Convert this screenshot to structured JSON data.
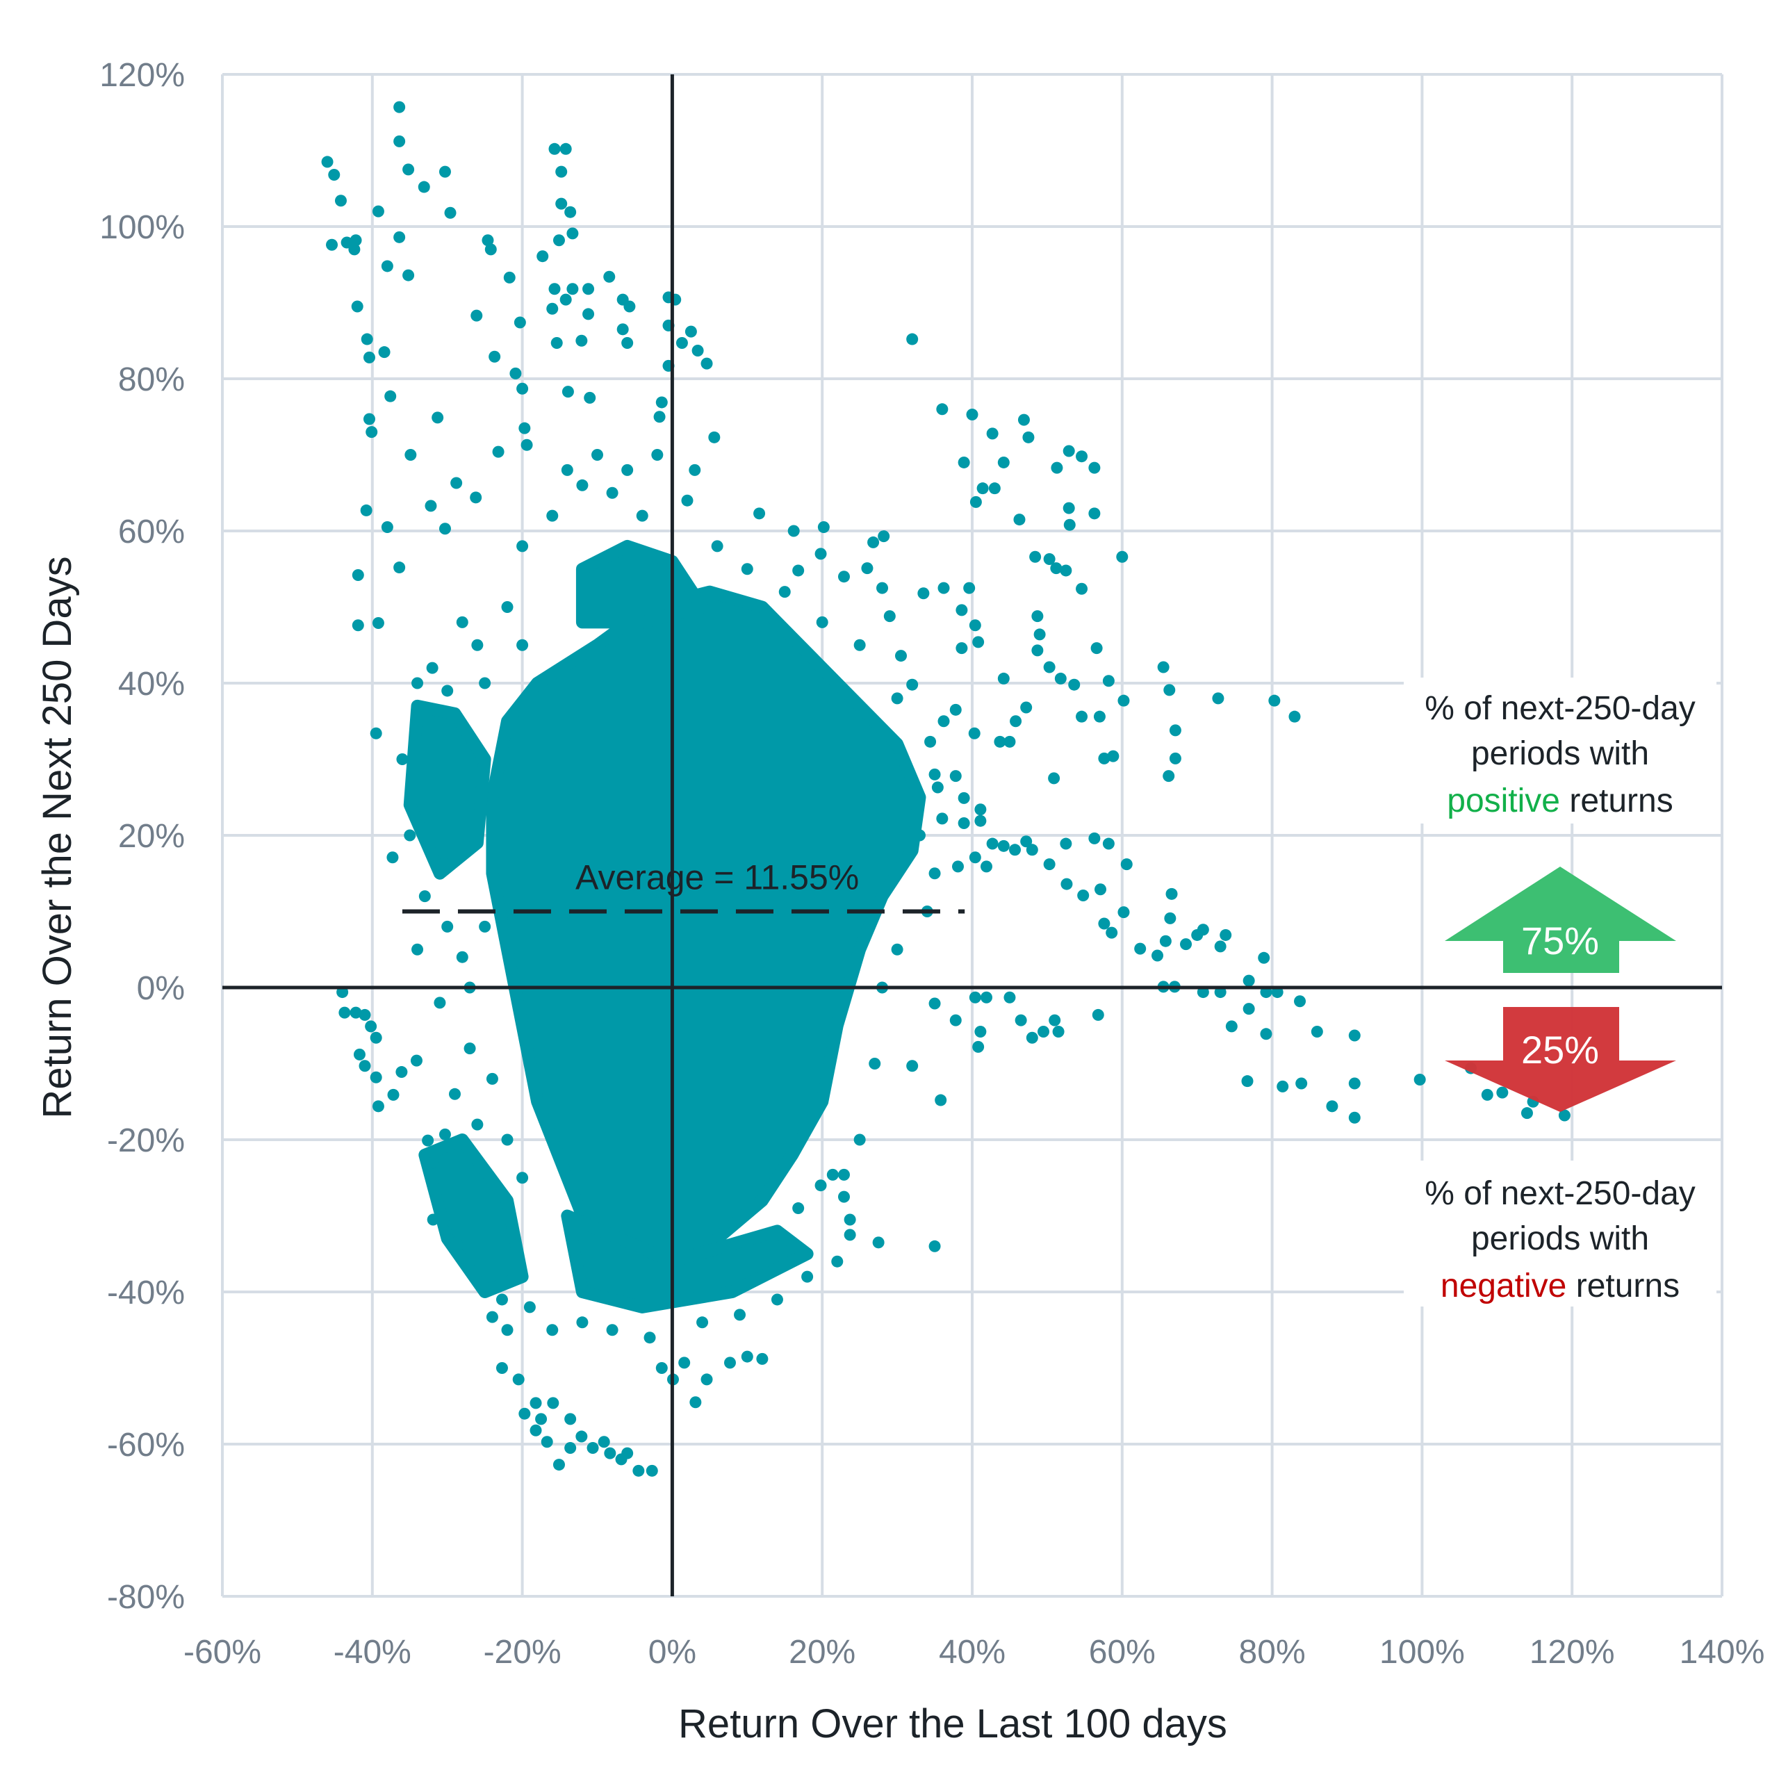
{
  "chart_data": {
    "type": "scatter",
    "title": "",
    "xlabel": "Return Over the Last 100 days",
    "ylabel": "Return Over the Next 250 Days",
    "xlim": [
      -60,
      140
    ],
    "ylim": [
      -80,
      120
    ],
    "x_ticks": [
      -60,
      -40,
      -20,
      0,
      20,
      40,
      60,
      80,
      100,
      120,
      140
    ],
    "y_ticks": [
      -80,
      -60,
      -40,
      -20,
      0,
      20,
      40,
      60,
      80,
      100,
      120
    ],
    "x_tick_labels": [
      "-60%",
      "-40%",
      "-20%",
      "0%",
      "20%",
      "40%",
      "60%",
      "80%",
      "100%",
      "120%",
      "140%"
    ],
    "y_tick_labels": [
      "-80%",
      "-60%",
      "-40%",
      "-20%",
      "0%",
      "20%",
      "40%",
      "60%",
      "80%",
      "100%",
      "120%"
    ],
    "grid": true,
    "colors": {
      "points": "#0099a8",
      "grid": "#d6dde5",
      "axis": "#1c2329",
      "positive": "#3dbf72",
      "negative": "#d13438",
      "positive_text": "#12b04a",
      "negative_text": "#c00000"
    },
    "average": {
      "label": "Average = 11.55%",
      "value": 11.55,
      "line_y": 10,
      "line_x_range": [
        -36,
        39
      ]
    },
    "dense_regions": [
      [
        [
          -18,
          40
        ],
        [
          -10,
          45
        ],
        [
          -3,
          50
        ],
        [
          5,
          52
        ],
        [
          12,
          50
        ],
        [
          18,
          44
        ],
        [
          24,
          38
        ],
        [
          30,
          32
        ],
        [
          33,
          25
        ],
        [
          32,
          18
        ],
        [
          28,
          12
        ],
        [
          25,
          5
        ],
        [
          22,
          -5
        ],
        [
          20,
          -15
        ],
        [
          16,
          -22
        ],
        [
          12,
          -28
        ],
        [
          6,
          -33
        ],
        [
          0,
          -39
        ],
        [
          -5,
          -40
        ],
        [
          -10,
          -35
        ],
        [
          -14,
          -25
        ],
        [
          -18,
          -15
        ],
        [
          -20,
          -5
        ],
        [
          -22,
          5
        ],
        [
          -24,
          15
        ],
        [
          -24,
          25
        ],
        [
          -22,
          35
        ]
      ],
      [
        [
          -34,
          37
        ],
        [
          -29,
          36
        ],
        [
          -25,
          30
        ],
        [
          -26,
          19
        ],
        [
          -31,
          15
        ],
        [
          -35,
          24
        ]
      ],
      [
        [
          -33,
          -22
        ],
        [
          -28,
          -20
        ],
        [
          -22,
          -28
        ],
        [
          -20,
          -38
        ],
        [
          -25,
          -40
        ],
        [
          -30,
          -33
        ]
      ],
      [
        [
          -14,
          -30
        ],
        [
          0,
          -36
        ],
        [
          14,
          -32
        ],
        [
          18,
          -35
        ],
        [
          8,
          -40
        ],
        [
          -4,
          -42
        ],
        [
          -12,
          -40
        ]
      ],
      [
        [
          -12,
          55
        ],
        [
          -6,
          58
        ],
        [
          0,
          56
        ],
        [
          4,
          50
        ],
        [
          -4,
          48
        ],
        [
          -12,
          48
        ]
      ]
    ],
    "points": [
      [
        -46,
        108.5
      ],
      [
        -45.1,
        106.8
      ],
      [
        -44.2,
        103.4
      ],
      [
        -45.4,
        97.6
      ],
      [
        -43.4,
        97.9
      ],
      [
        -42.4,
        97
      ],
      [
        -42.2,
        98.2
      ],
      [
        -42,
        89.5
      ],
      [
        -40.7,
        85.2
      ],
      [
        -40.4,
        82.8
      ],
      [
        -39.2,
        102
      ],
      [
        -38.4,
        83.5
      ],
      [
        -38,
        94.8
      ],
      [
        -37.6,
        77.7
      ],
      [
        -36.4,
        115.7
      ],
      [
        -36.4,
        111.2
      ],
      [
        -35.2,
        107.5
      ],
      [
        -33.1,
        105.2
      ],
      [
        -30.3,
        107.2
      ],
      [
        -29.6,
        101.8
      ],
      [
        -36.4,
        98.6
      ],
      [
        -35.2,
        93.6
      ],
      [
        -40.4,
        74.7
      ],
      [
        -40.1,
        73
      ],
      [
        -31.3,
        74.9
      ],
      [
        -34.9,
        70
      ],
      [
        -28.8,
        66.3
      ],
      [
        -26.2,
        64.4
      ],
      [
        -32.2,
        63.3
      ],
      [
        -30.3,
        60.3
      ],
      [
        -40.8,
        62.7
      ],
      [
        -38,
        60.5
      ],
      [
        -41.9,
        54.2
      ],
      [
        -36.4,
        55.2
      ],
      [
        -41.9,
        47.6
      ],
      [
        -39.2,
        47.9
      ],
      [
        -39.5,
        33.4
      ],
      [
        -37.3,
        17.1
      ],
      [
        -24.6,
        98.2
      ],
      [
        -24.2,
        97
      ],
      [
        -26.1,
        88.3
      ],
      [
        -23.7,
        82.9
      ],
      [
        -21.7,
        93.3
      ],
      [
        -20.3,
        87.4
      ],
      [
        -20.9,
        80.7
      ],
      [
        -20,
        78.7
      ],
      [
        -23.2,
        70.4
      ],
      [
        -19.7,
        73.5
      ],
      [
        -19.4,
        71.3
      ],
      [
        -15.7,
        110.2
      ],
      [
        -14.2,
        110.2
      ],
      [
        -14.8,
        107.2
      ],
      [
        -14.8,
        103
      ],
      [
        -13.6,
        101.9
      ],
      [
        -13.3,
        99.1
      ],
      [
        -15.1,
        98.2
      ],
      [
        -17.3,
        96.1
      ],
      [
        -15.7,
        91.8
      ],
      [
        -13.3,
        91.8
      ],
      [
        -11.2,
        91.8
      ],
      [
        -16,
        89.2
      ],
      [
        -14.2,
        90.4
      ],
      [
        -11.2,
        88.5
      ],
      [
        -15.4,
        84.7
      ],
      [
        -12.1,
        85
      ],
      [
        -13.9,
        78.3
      ],
      [
        -11,
        77.5
      ],
      [
        -8.4,
        93.4
      ],
      [
        -6.6,
        90.4
      ],
      [
        -5.7,
        89.5
      ],
      [
        -6.6,
        86.5
      ],
      [
        -6,
        84.7
      ],
      [
        -0.5,
        90.7
      ],
      [
        0.4,
        90.4
      ],
      [
        -0.5,
        87
      ],
      [
        1.3,
        84.7
      ],
      [
        2.5,
        86.2
      ],
      [
        3.4,
        83.7
      ],
      [
        4.6,
        82
      ],
      [
        -0.5,
        81.7
      ],
      [
        -1.4,
        76.9
      ],
      [
        -1.7,
        75
      ],
      [
        5.6,
        72.3
      ],
      [
        32,
        85.2
      ],
      [
        36,
        76
      ],
      [
        40,
        75.3
      ],
      [
        42.7,
        72.8
      ],
      [
        46.9,
        74.6
      ],
      [
        47.5,
        72.3
      ],
      [
        44.2,
        69
      ],
      [
        38.9,
        69
      ],
      [
        41.4,
        65.6
      ],
      [
        43,
        65.6
      ],
      [
        40.5,
        63.8
      ],
      [
        46.3,
        61.5
      ],
      [
        52.9,
        70.5
      ],
      [
        54.6,
        69.8
      ],
      [
        56.3,
        68.3
      ],
      [
        51.3,
        68.3
      ],
      [
        52.9,
        63
      ],
      [
        56.3,
        62.3
      ],
      [
        53,
        60.8
      ],
      [
        48.4,
        56.6
      ],
      [
        50.3,
        56.3
      ],
      [
        51.2,
        55.1
      ],
      [
        52.5,
        54.8
      ],
      [
        54.6,
        52.4
      ],
      [
        60,
        56.6
      ],
      [
        48.7,
        48.8
      ],
      [
        49,
        46.4
      ],
      [
        48.7,
        44.3
      ],
      [
        50.3,
        42.1
      ],
      [
        51.8,
        40.6
      ],
      [
        53.6,
        39.8
      ],
      [
        56.6,
        44.6
      ],
      [
        54.6,
        35.6
      ],
      [
        57,
        35.6
      ],
      [
        58.2,
        40.3
      ],
      [
        60.2,
        37.7
      ],
      [
        65.5,
        42.1
      ],
      [
        66.3,
        39.1
      ],
      [
        67.1,
        33.8
      ],
      [
        67.1,
        30.1
      ],
      [
        66.2,
        27.8
      ],
      [
        57.6,
        30.1
      ],
      [
        58.8,
        30.4
      ],
      [
        72.8,
        38
      ],
      [
        80.3,
        37.7
      ],
      [
        83,
        35.6
      ],
      [
        50.9,
        27.5
      ],
      [
        40.4,
        47.6
      ],
      [
        38.6,
        44.6
      ],
      [
        40.8,
        45.4
      ],
      [
        44.2,
        40.6
      ],
      [
        40.3,
        33.4
      ],
      [
        43.7,
        32.3
      ],
      [
        45,
        32.3
      ],
      [
        45.8,
        35
      ],
      [
        47.2,
        36.8
      ],
      [
        36.2,
        52.5
      ],
      [
        39.6,
        52.5
      ],
      [
        33.5,
        51.8
      ],
      [
        38.6,
        49.6
      ],
      [
        52.5,
        18.9
      ],
      [
        56.3,
        19.6
      ],
      [
        58.2,
        18.9
      ],
      [
        60.6,
        16.2
      ],
      [
        48,
        18.1
      ],
      [
        50.3,
        16.2
      ],
      [
        52.6,
        13.6
      ],
      [
        54.8,
        12.1
      ],
      [
        57.1,
        12.9
      ],
      [
        57.6,
        8.4
      ],
      [
        58.6,
        7.2
      ],
      [
        60.2,
        9.9
      ],
      [
        62.4,
        5.1
      ],
      [
        64.7,
        4.2
      ],
      [
        65.8,
        6.1
      ],
      [
        66.4,
        9.1
      ],
      [
        66.6,
        12.3
      ],
      [
        68.5,
        5.7
      ],
      [
        70,
        6.9
      ],
      [
        70.8,
        7.6
      ],
      [
        73.1,
        5.4
      ],
      [
        73.8,
        6.9
      ],
      [
        65.5,
        0.1
      ],
      [
        67,
        0.1
      ],
      [
        70.8,
        -0.6
      ],
      [
        73.1,
        -0.6
      ],
      [
        76.9,
        0.9
      ],
      [
        78.9,
        3.9
      ],
      [
        79.2,
        -0.6
      ],
      [
        80.7,
        -0.6
      ],
      [
        83.7,
        -1.8
      ],
      [
        74.6,
        -5.1
      ],
      [
        76.9,
        -2.8
      ],
      [
        79.2,
        -6.1
      ],
      [
        86,
        -5.8
      ],
      [
        91,
        -6.3
      ],
      [
        76.7,
        -12.3
      ],
      [
        81.4,
        -13
      ],
      [
        83.9,
        -12.6
      ],
      [
        91,
        -12.6
      ],
      [
        88,
        -15.6
      ],
      [
        91,
        -17.1
      ],
      [
        99.7,
        -12.1
      ],
      [
        106.5,
        -10.6
      ],
      [
        108.7,
        -14.1
      ],
      [
        110.7,
        -13.8
      ],
      [
        114,
        -16.5
      ],
      [
        114.8,
        -15
      ],
      [
        119,
        -16.8
      ],
      [
        35,
        -2.1
      ],
      [
        37.8,
        -4.3
      ],
      [
        40.4,
        -1.3
      ],
      [
        41.9,
        -1.3
      ],
      [
        41.1,
        -5.8
      ],
      [
        40.8,
        -7.8
      ],
      [
        45,
        -1.3
      ],
      [
        46.5,
        -4.3
      ],
      [
        48,
        -6.6
      ],
      [
        49.5,
        -5.8
      ],
      [
        51,
        -4.3
      ],
      [
        51.5,
        -5.8
      ],
      [
        56.8,
        -3.6
      ],
      [
        35.8,
        -14.8
      ],
      [
        35,
        -34
      ],
      [
        32,
        -10.3
      ],
      [
        36,
        22.2
      ],
      [
        38.9,
        21.6
      ],
      [
        41.1,
        21.9
      ],
      [
        42.7,
        18.9
      ],
      [
        44.2,
        18.6
      ],
      [
        45.7,
        18.1
      ],
      [
        40.4,
        17.1
      ],
      [
        38.1,
        15.9
      ],
      [
        41.9,
        15.9
      ],
      [
        47.2,
        19.2
      ],
      [
        41.1,
        23.4
      ],
      [
        38.9,
        24.9
      ],
      [
        35.4,
        26.3
      ],
      [
        37.8,
        27.8
      ],
      [
        34.4,
        32.3
      ],
      [
        36.2,
        35
      ],
      [
        37.8,
        36.5
      ],
      [
        32,
        39.8
      ],
      [
        30.5,
        43.6
      ],
      [
        29,
        48.8
      ],
      [
        28,
        52.5
      ],
      [
        26,
        55.1
      ],
      [
        22.9,
        54
      ],
      [
        19.8,
        57
      ],
      [
        16.8,
        54.8
      ],
      [
        16.2,
        60
      ],
      [
        20.2,
        60.5
      ],
      [
        28.2,
        59.3
      ],
      [
        26.8,
        58.5
      ],
      [
        11.6,
        62.3
      ],
      [
        -44,
        -0.6
      ],
      [
        -43.7,
        -3.3
      ],
      [
        -42.2,
        -3.3
      ],
      [
        -41,
        -3.6
      ],
      [
        -40.2,
        -5.1
      ],
      [
        -39.5,
        -6.6
      ],
      [
        -41.7,
        -8.8
      ],
      [
        -41,
        -10.3
      ],
      [
        -39.5,
        -11.8
      ],
      [
        -39.2,
        -15.6
      ],
      [
        -37.2,
        -14.1
      ],
      [
        -36.1,
        -11.1
      ],
      [
        -34.1,
        -9.6
      ],
      [
        -22.7,
        -50
      ],
      [
        -20.5,
        -51.5
      ],
      [
        -19.7,
        -56
      ],
      [
        -18.2,
        -58.2
      ],
      [
        -16.7,
        -59.7
      ],
      [
        -15.1,
        -62.7
      ],
      [
        -13.6,
        -60.5
      ],
      [
        -10.6,
        -60.5
      ],
      [
        -8.3,
        -61.2
      ],
      [
        -6.8,
        -62
      ],
      [
        -4.5,
        -63.5
      ],
      [
        -2.7,
        -63.5
      ],
      [
        -15.9,
        -54.6
      ],
      [
        -18.2,
        -54.6
      ],
      [
        -13.6,
        -56.7
      ],
      [
        -12.1,
        -59
      ],
      [
        -6,
        -61.2
      ],
      [
        -9.1,
        -59.7
      ],
      [
        -17.5,
        -56.7
      ],
      [
        1.6,
        -49.3
      ],
      [
        4.6,
        -51.5
      ],
      [
        3.1,
        -54.5
      ],
      [
        7.7,
        -49.3
      ],
      [
        10,
        -48.5
      ],
      [
        12,
        -48.8
      ],
      [
        0.1,
        -51.5
      ],
      [
        -1.4,
        -50
      ],
      [
        16.8,
        -29
      ],
      [
        19.8,
        -26
      ],
      [
        22.9,
        -27.5
      ],
      [
        23.7,
        -30.5
      ],
      [
        27.5,
        -33.5
      ],
      [
        23.7,
        -32.5
      ],
      [
        22.9,
        -24.6
      ],
      [
        21.4,
        -24.6
      ],
      [
        -31.9,
        -30.5
      ],
      [
        -30.3,
        -32
      ],
      [
        -28.8,
        -33.5
      ],
      [
        -24.3,
        -39.5
      ],
      [
        -24,
        -43.3
      ],
      [
        -22.7,
        -41
      ],
      [
        -31.9,
        -23
      ],
      [
        -32.6,
        -20.1
      ],
      [
        -30.3,
        -19.3
      ],
      [
        -34,
        40
      ],
      [
        -32,
        42
      ],
      [
        -30,
        39
      ],
      [
        -36,
        30
      ],
      [
        -35,
        20
      ],
      [
        -33,
        12
      ],
      [
        -30,
        8
      ],
      [
        -28,
        4
      ],
      [
        -34,
        5
      ],
      [
        -31,
        -2
      ],
      [
        -27,
        -8
      ],
      [
        -29,
        -14
      ],
      [
        -26,
        -18
      ],
      [
        -24,
        -12
      ],
      [
        -27,
        0
      ],
      [
        -25,
        8
      ],
      [
        -22,
        -20
      ],
      [
        -20,
        -25
      ],
      [
        -22,
        -45
      ],
      [
        -19,
        -42
      ],
      [
        -16,
        -45
      ],
      [
        -12,
        -44
      ],
      [
        -8,
        -45
      ],
      [
        -3,
        -46
      ],
      [
        4,
        -44
      ],
      [
        9,
        -43
      ],
      [
        14,
        -41
      ],
      [
        18,
        -38
      ],
      [
        22,
        -36
      ],
      [
        25,
        -20
      ],
      [
        27,
        -10
      ],
      [
        28,
        0
      ],
      [
        30,
        5
      ],
      [
        34,
        10
      ],
      [
        35,
        15
      ],
      [
        33,
        20
      ],
      [
        35,
        28
      ],
      [
        30,
        38
      ],
      [
        25,
        45
      ],
      [
        20,
        48
      ],
      [
        15,
        52
      ],
      [
        10,
        55
      ],
      [
        6,
        58
      ],
      [
        -4,
        62
      ],
      [
        -8,
        65
      ],
      [
        -12,
        66
      ],
      [
        -6,
        68
      ],
      [
        -2,
        70
      ],
      [
        2,
        64
      ],
      [
        -16,
        62
      ],
      [
        -20,
        58
      ],
      [
        -22,
        50
      ],
      [
        -26,
        45
      ],
      [
        -28,
        48
      ],
      [
        -25,
        40
      ],
      [
        -20,
        45
      ],
      [
        -14,
        68
      ],
      [
        -10,
        70
      ],
      [
        3,
        68
      ]
    ]
  },
  "annotations": {
    "positive": {
      "line1": "% of next-250-day",
      "line2": "periods with",
      "highlight": "positive",
      "rest": " returns",
      "value": "75%"
    },
    "negative": {
      "line1": "% of next-250-day",
      "line2": "periods with",
      "highlight": "negative",
      "rest": " returns",
      "value": "25%"
    }
  }
}
